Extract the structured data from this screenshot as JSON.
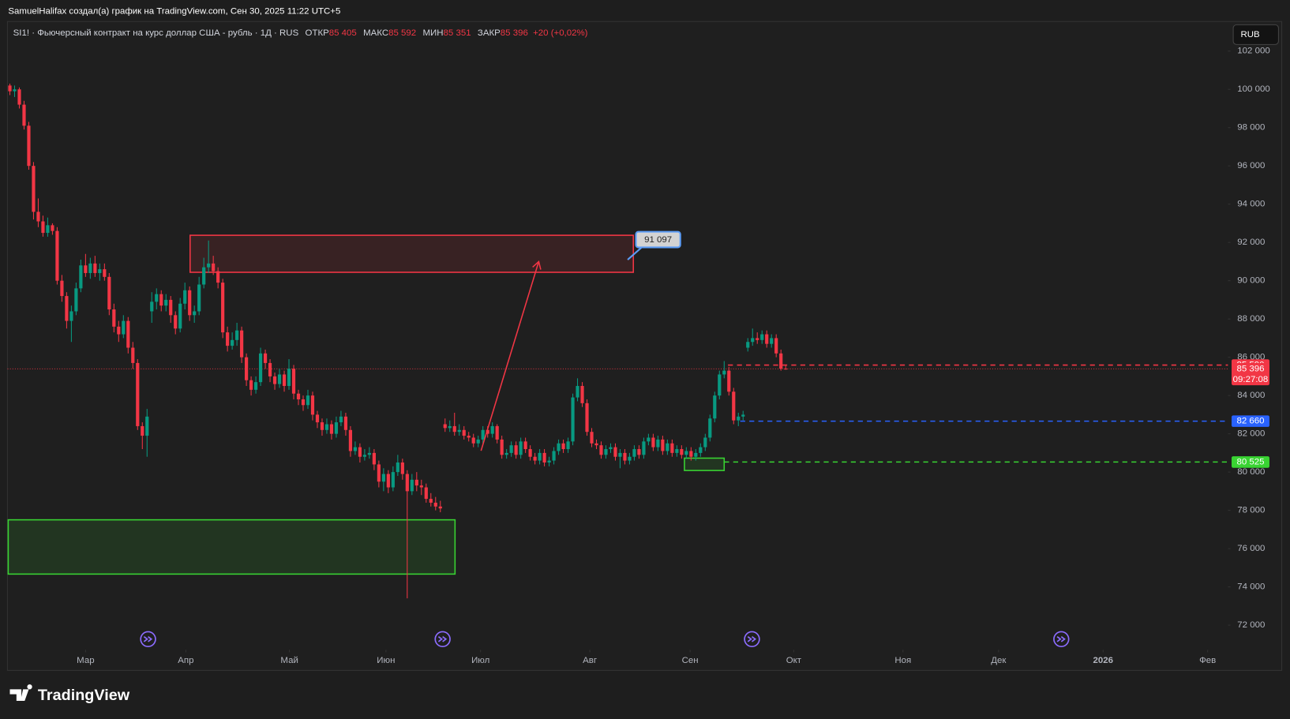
{
  "header": "SamuelHalifax создал(а) график на TradingView.com, Сен 30, 2025 11:22 UTC+5",
  "currency": "RUB",
  "brand": "TradingView",
  "chart_data": {
    "type": "candlestick",
    "symbol": "SI1! · Фьючерсный контракт на курс доллар США - рубль · 1Д · RUS",
    "legend": [
      {
        "name": "ОТКР",
        "value": "85 405"
      },
      {
        "name": "МАКС",
        "value": "85 592"
      },
      {
        "name": "МИН",
        "value": "85 351"
      },
      {
        "name": "ЗАКР",
        "value": "85 396"
      }
    ],
    "change": "+20 (+0,02%)",
    "up_color": "#089981",
    "down_color": "#f23645",
    "candles": [
      [
        100200,
        100300,
        99700,
        99900
      ],
      [
        99900,
        100200,
        99600,
        100000
      ],
      [
        100000,
        100100,
        99000,
        99200
      ],
      [
        99200,
        99400,
        97900,
        98100
      ],
      [
        98100,
        98300,
        95800,
        96000
      ],
      [
        96000,
        96200,
        93200,
        93600
      ],
      [
        93600,
        94300,
        92800,
        93100
      ],
      [
        93100,
        93400,
        92300,
        92500
      ],
      [
        92500,
        93300,
        92300,
        92900
      ],
      [
        92900,
        93000,
        92400,
        92600
      ],
      [
        92600,
        92800,
        89800,
        90000
      ],
      [
        90000,
        90300,
        88900,
        89200
      ],
      [
        89200,
        89400,
        87500,
        87900
      ],
      [
        87900,
        88700,
        86800,
        88400
      ],
      [
        88400,
        89900,
        88200,
        89600
      ],
      [
        89600,
        91100,
        89400,
        90800
      ],
      [
        90800,
        91400,
        90200,
        90400
      ],
      [
        90400,
        91200,
        90100,
        90900
      ],
      [
        90900,
        91300,
        90200,
        90400
      ],
      [
        90400,
        90900,
        90000,
        90600
      ],
      [
        90600,
        90900,
        90000,
        90200
      ],
      [
        90200,
        90400,
        88200,
        88500
      ],
      [
        88500,
        88800,
        87300,
        87600
      ],
      [
        87600,
        87900,
        86800,
        87200
      ],
      [
        87200,
        88200,
        87000,
        87900
      ],
      [
        87900,
        88100,
        86200,
        86500
      ],
      [
        86500,
        86800,
        85400,
        85700
      ],
      [
        85700,
        85900,
        82200,
        82400
      ],
      [
        82400,
        82600,
        81200,
        81900
      ],
      [
        81900,
        83300,
        80800,
        82900
      ],
      [
        88400,
        89400,
        87800,
        88900
      ],
      [
        88900,
        89600,
        88500,
        89300
      ],
      [
        89300,
        89500,
        88400,
        88700
      ],
      [
        88700,
        89300,
        88400,
        89000
      ],
      [
        89000,
        89200,
        87800,
        88200
      ],
      [
        88200,
        88400,
        87200,
        87500
      ],
      [
        87500,
        89100,
        87300,
        88800
      ],
      [
        88800,
        89900,
        88500,
        89500
      ],
      [
        89500,
        89700,
        87900,
        88200
      ],
      [
        88200,
        88700,
        87800,
        88400
      ],
      [
        88400,
        90200,
        88200,
        89800
      ],
      [
        89800,
        91200,
        89600,
        90700
      ],
      [
        90700,
        92100,
        90400,
        90900
      ],
      [
        90900,
        91300,
        90300,
        90500
      ],
      [
        90500,
        90700,
        89600,
        89900
      ],
      [
        89900,
        90100,
        87000,
        87300
      ],
      [
        87300,
        87600,
        86300,
        86600
      ],
      [
        86600,
        87300,
        86400,
        86900
      ],
      [
        86900,
        87800,
        86600,
        87400
      ],
      [
        87400,
        87600,
        85700,
        86000
      ],
      [
        86000,
        86200,
        84500,
        84800
      ],
      [
        84800,
        85000,
        84000,
        84300
      ],
      [
        84300,
        85000,
        84100,
        84700
      ],
      [
        84700,
        86500,
        84500,
        86200
      ],
      [
        86200,
        86400,
        85400,
        85700
      ],
      [
        85700,
        85900,
        84700,
        85000
      ],
      [
        85000,
        85200,
        84300,
        84600
      ],
      [
        84600,
        85400,
        84400,
        85100
      ],
      [
        85100,
        85300,
        84200,
        84500
      ],
      [
        84500,
        85900,
        84300,
        85400
      ],
      [
        85400,
        85600,
        83800,
        84100
      ],
      [
        84100,
        84300,
        83500,
        83800
      ],
      [
        83800,
        84000,
        83200,
        83500
      ],
      [
        83500,
        84300,
        83300,
        84000
      ],
      [
        84000,
        84200,
        82700,
        83000
      ],
      [
        83000,
        83200,
        82300,
        82600
      ],
      [
        82600,
        82800,
        81900,
        82200
      ],
      [
        82200,
        82800,
        82000,
        82500
      ],
      [
        82500,
        82700,
        81700,
        82000
      ],
      [
        82000,
        82900,
        81800,
        82600
      ],
      [
        82600,
        83200,
        82400,
        82900
      ],
      [
        82900,
        83100,
        81900,
        82200
      ],
      [
        82200,
        82400,
        80800,
        81100
      ],
      [
        81100,
        81600,
        80900,
        81300
      ],
      [
        81300,
        81500,
        80500,
        80800
      ],
      [
        80800,
        81200,
        80600,
        80900
      ],
      [
        80900,
        81300,
        80700,
        81000
      ],
      [
        81000,
        81200,
        80100,
        80400
      ],
      [
        80400,
        80600,
        79200,
        79500
      ],
      [
        79500,
        80200,
        79000,
        79900
      ],
      [
        79900,
        80100,
        78900,
        79200
      ],
      [
        79200,
        80300,
        79000,
        80000
      ],
      [
        80000,
        80900,
        79800,
        80500
      ],
      [
        80500,
        80700,
        79600,
        79900
      ],
      [
        79900,
        80100,
        73400,
        79000
      ],
      [
        79000,
        79900,
        78800,
        79600
      ],
      [
        79600,
        80000,
        79000,
        79300
      ],
      [
        79300,
        79600,
        78800,
        79200
      ],
      [
        79200,
        79400,
        78400,
        78600
      ],
      [
        78600,
        78900,
        78200,
        78400
      ],
      [
        78400,
        78700,
        78000,
        78200
      ],
      [
        78200,
        78500,
        77900,
        78100
      ],
      [
        82500,
        82800,
        82100,
        82300
      ],
      [
        82300,
        82700,
        82100,
        82400
      ],
      [
        82400,
        83100,
        81900,
        82100
      ],
      [
        82100,
        82500,
        81900,
        82200
      ],
      [
        82200,
        82400,
        81700,
        81900
      ],
      [
        81900,
        82100,
        81600,
        81800
      ],
      [
        81800,
        82000,
        81300,
        81500
      ],
      [
        81500,
        81900,
        81300,
        81700
      ],
      [
        81700,
        82400,
        81500,
        82200
      ],
      [
        82200,
        82400,
        81800,
        82000
      ],
      [
        82000,
        82600,
        81800,
        82400
      ],
      [
        82400,
        82500,
        81500,
        81700
      ],
      [
        81700,
        81900,
        80700,
        80900
      ],
      [
        80900,
        81200,
        80700,
        81000
      ],
      [
        81000,
        81600,
        80800,
        81400
      ],
      [
        81400,
        81600,
        80700,
        80900
      ],
      [
        80900,
        81800,
        80700,
        81600
      ],
      [
        81600,
        81800,
        81000,
        81200
      ],
      [
        81200,
        81400,
        80600,
        80800
      ],
      [
        80800,
        81000,
        80400,
        80600
      ],
      [
        80600,
        81200,
        80400,
        81000
      ],
      [
        81000,
        81200,
        80300,
        80500
      ],
      [
        80500,
        80800,
        80300,
        80600
      ],
      [
        80600,
        81300,
        80400,
        81100
      ],
      [
        81100,
        81700,
        80900,
        81500
      ],
      [
        81500,
        81700,
        81000,
        81200
      ],
      [
        81200,
        81800,
        81000,
        81600
      ],
      [
        81600,
        84100,
        81400,
        83900
      ],
      [
        83900,
        84900,
        83700,
        84500
      ],
      [
        84500,
        84700,
        83400,
        83600
      ],
      [
        83600,
        83800,
        81900,
        82100
      ],
      [
        82100,
        82300,
        81300,
        81500
      ],
      [
        81500,
        81700,
        81200,
        81400
      ],
      [
        81400,
        81600,
        80700,
        80900
      ],
      [
        80900,
        81400,
        80700,
        81200
      ],
      [
        81200,
        81500,
        81000,
        81300
      ],
      [
        81300,
        81500,
        80600,
        80800
      ],
      [
        80800,
        81200,
        80200,
        81000
      ],
      [
        81000,
        81200,
        80400,
        80600
      ],
      [
        80600,
        81000,
        80400,
        80800
      ],
      [
        80800,
        81400,
        80600,
        81200
      ],
      [
        81200,
        81400,
        80700,
        80900
      ],
      [
        80900,
        81800,
        80700,
        81600
      ],
      [
        81600,
        82000,
        81400,
        81800
      ],
      [
        81800,
        82000,
        81100,
        81300
      ],
      [
        81300,
        81900,
        81100,
        81700
      ],
      [
        81700,
        81900,
        80900,
        81100
      ],
      [
        81100,
        81700,
        80900,
        81500
      ],
      [
        81500,
        81700,
        80800,
        81000
      ],
      [
        81000,
        81400,
        80800,
        81200
      ],
      [
        81200,
        81400,
        80700,
        80900
      ],
      [
        80900,
        81300,
        80700,
        81100
      ],
      [
        81100,
        81300,
        80600,
        80800
      ],
      [
        80800,
        81200,
        80600,
        81000
      ],
      [
        81000,
        81500,
        80800,
        81300
      ],
      [
        81300,
        82000,
        81100,
        81800
      ],
      [
        81800,
        83000,
        81600,
        82800
      ],
      [
        82800,
        84200,
        82600,
        84000
      ],
      [
        84000,
        85300,
        83800,
        85100
      ],
      [
        85100,
        85800,
        84900,
        85300
      ],
      [
        85300,
        85500,
        84000,
        84200
      ],
      [
        84200,
        84400,
        82500,
        82700
      ],
      [
        82700,
        83100,
        82400,
        82900
      ],
      [
        82900,
        83200,
        82700,
        83000
      ],
      [
        86500,
        87000,
        86300,
        86800
      ],
      [
        86800,
        87500,
        86600,
        87000
      ],
      [
        87000,
        87300,
        86700,
        86900
      ],
      [
        86900,
        87400,
        86700,
        87200
      ],
      [
        87200,
        87400,
        86500,
        86700
      ],
      [
        86700,
        87200,
        86500,
        87000
      ],
      [
        87000,
        87200,
        86000,
        86200
      ],
      [
        86200,
        86400,
        85300,
        85405
      ],
      [
        85405,
        85592,
        85351,
        85396
      ]
    ],
    "xlim": [
      -0.5,
      257.5
    ],
    "xticks": [
      {
        "value": 16,
        "label": "Мар"
      },
      {
        "value": 37.2,
        "label": "Апр"
      },
      {
        "value": 59.1,
        "label": "Май"
      },
      {
        "value": 79.5,
        "label": "Июн"
      },
      {
        "value": 99.5,
        "label": "Июл"
      },
      {
        "value": 122.6,
        "label": "Авг"
      },
      {
        "value": 143.8,
        "label": "Сен"
      },
      {
        "value": 165.7,
        "label": "Окт"
      },
      {
        "value": 188.8,
        "label": "Ноя"
      },
      {
        "value": 209,
        "label": "Дек"
      },
      {
        "value": 231.1,
        "label": "2026"
      },
      {
        "value": 253.2,
        "label": "Фев"
      }
    ],
    "ylim": [
      72000,
      102000
    ],
    "yticks": [
      {
        "value": 72000,
        "label": "72 000"
      },
      {
        "value": 74000,
        "label": "74 000"
      },
      {
        "value": 76000,
        "label": "76 000"
      },
      {
        "value": 78000,
        "label": "78 000"
      },
      {
        "value": 80000,
        "label": "80 000"
      },
      {
        "value": 82000,
        "label": "82 000"
      },
      {
        "value": 84000,
        "label": "84 000"
      },
      {
        "value": 86000,
        "label": "86 000"
      },
      {
        "value": 88000,
        "label": "88 000"
      },
      {
        "value": 90000,
        "label": "90 000"
      },
      {
        "value": 92000,
        "label": "92 000"
      },
      {
        "value": 94000,
        "label": "94 000"
      },
      {
        "value": 96000,
        "label": "96 000"
      },
      {
        "value": 98000,
        "label": "98 000"
      },
      {
        "value": 100000,
        "label": "100 000"
      },
      {
        "value": 102000,
        "label": "102 000"
      }
    ],
    "last_price": {
      "value": 85396,
      "label": "85 396"
    },
    "countdown": "09:27:08",
    "levels": [
      {
        "value": 85590,
        "label": "85 590",
        "color": "#f23645",
        "from": 151.8
      },
      {
        "value": 82660,
        "label": "82 660",
        "color": "#2962ff",
        "from": 154.4
      },
      {
        "value": 80525,
        "label": "80 525",
        "color": "#39d432",
        "from": 151
      }
    ],
    "zones": [
      {
        "from": 38.1,
        "to": 131.8,
        "top": 92374,
        "bottom": 90440,
        "color": "#f23645"
      },
      {
        "from": -0.35,
        "to": 94.1,
        "top": 77505,
        "bottom": 74669,
        "color": "#39d432"
      },
      {
        "from": 142.6,
        "to": 151,
        "top": 80728,
        "bottom": 80083,
        "color": "#39d432"
      }
    ],
    "arrow": {
      "x": [
        99.6,
        111.8
      ],
      "y": [
        81114,
        91000
      ],
      "color": "#f23645"
    },
    "callout": {
      "at": 130.6,
      "value": 91097,
      "label": "91 097"
    }
  }
}
